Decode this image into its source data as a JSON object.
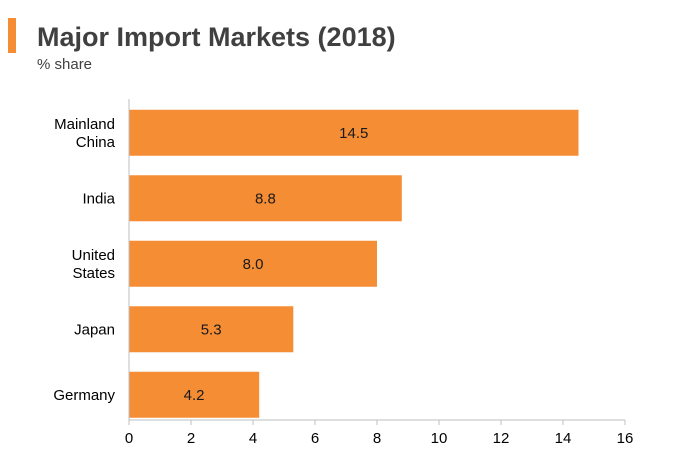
{
  "header": {
    "title": "Major Import Markets (2018)",
    "subtitle": "% share",
    "accent_color": "#f58d34"
  },
  "chart_data": {
    "type": "bar",
    "orientation": "horizontal",
    "title": "Major Import Markets (2018)",
    "subtitle": "% share",
    "xlabel": "",
    "ylabel": "",
    "categories": [
      "Mainland China",
      "India",
      "United States",
      "Japan",
      "Germany"
    ],
    "category_lines": [
      [
        "Mainland",
        "China"
      ],
      [
        "India"
      ],
      [
        "United",
        "States"
      ],
      [
        "Japan"
      ],
      [
        "Germany"
      ]
    ],
    "values": [
      14.5,
      8.8,
      8.0,
      5.3,
      4.2
    ],
    "data_labels": [
      "14.5",
      "8.8",
      "8.0",
      "5.3",
      "4.2"
    ],
    "xlim": [
      0,
      16
    ],
    "x_ticks": [
      0,
      2,
      4,
      6,
      8,
      10,
      12,
      14,
      16
    ],
    "bar_color": "#f58d34",
    "grid": false,
    "legend": "none"
  }
}
